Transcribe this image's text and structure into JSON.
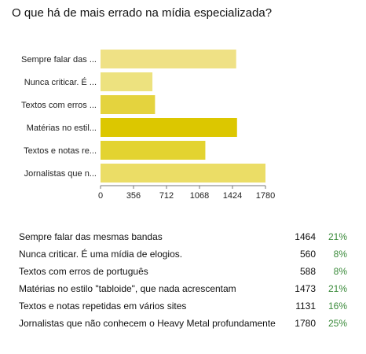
{
  "title": "O que há de mais errado na mídia especializada?",
  "chart_data": {
    "type": "bar",
    "orientation": "horizontal",
    "categories": [
      "Sempre falar das ...",
      "Nunca criticar. É ...",
      "Textos com erros ...",
      "Matérias no estil...",
      "Textos e notas re...",
      "Jornalistas que n..."
    ],
    "values": [
      1464,
      560,
      588,
      1473,
      1131,
      1780
    ],
    "colors": [
      "#efe185",
      "#ede27f",
      "#e4d33e",
      "#dcc700",
      "#e3d330",
      "#ebdd66"
    ],
    "xlim": [
      0,
      1780
    ],
    "xticks": [
      "0",
      "356",
      "712",
      "1068",
      "1424",
      "1780"
    ],
    "xlabel": "",
    "ylabel": "",
    "grid": false
  },
  "results": [
    {
      "label": "Sempre falar das mesmas bandas",
      "count": "1464",
      "percent": "21%"
    },
    {
      "label": "Nunca criticar. É uma mídia de elogios.",
      "count": "560",
      "percent": "8%"
    },
    {
      "label": "Textos com erros de português",
      "count": "588",
      "percent": "8%"
    },
    {
      "label": "Matérias no estilo \"tabloide\", que nada acrescentam",
      "count": "1473",
      "percent": "21%"
    },
    {
      "label": "Textos e notas repetidas em vários sites",
      "count": "1131",
      "percent": "16%"
    },
    {
      "label": "Jornalistas que não conhecem o Heavy Metal profundamente",
      "count": "1780",
      "percent": "25%"
    }
  ]
}
